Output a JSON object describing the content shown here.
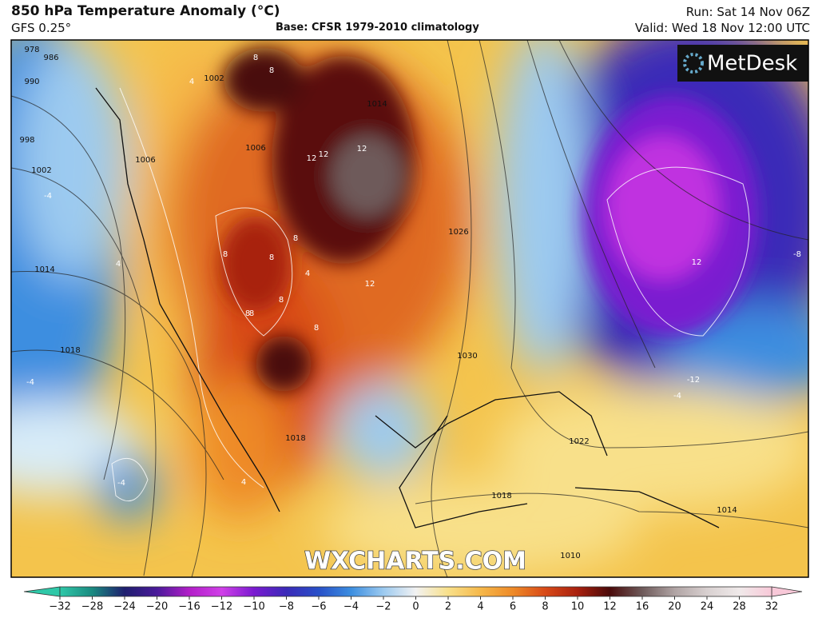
{
  "header": {
    "title": "850 hPa Temperature Anomaly (°C)",
    "model": "GFS 0.25°",
    "base": "Base: CFSR 1979-2010 climatology",
    "run": "Run: Sat 14 Nov 06Z",
    "valid": "Valid: Wed 18 Nov 12:00 UTC"
  },
  "map": {
    "logo": "MetDesk",
    "watermark": "WXCHARTS.COM",
    "isobar_labels": [
      "978",
      "986",
      "990",
      "998",
      "1002",
      "1002",
      "1006",
      "1006",
      "1014",
      "1018",
      "1014",
      "1018",
      "1022",
      "1026",
      "1030",
      "1018",
      "1014",
      "1010"
    ],
    "anomaly_labels": [
      "8",
      "8",
      "12",
      "12",
      "12",
      "12",
      "12",
      "8",
      "8",
      "8",
      "8",
      "8",
      "8",
      "4",
      "4",
      "4",
      "-4",
      "-4",
      "-4",
      "-4",
      "-8",
      "-12",
      "4",
      "8"
    ]
  },
  "colorbar": {
    "ticks": [
      -32,
      -28,
      -24,
      -20,
      -16,
      -12,
      -10,
      -8,
      -6,
      -4,
      -2,
      0,
      2,
      4,
      6,
      8,
      10,
      12,
      16,
      20,
      24,
      28,
      32
    ],
    "colors": [
      "#2fc8a8",
      "#1a8a80",
      "#1e1e6e",
      "#4a1a9a",
      "#b21ec8",
      "#d040e8",
      "#7a1ad0",
      "#3a2ab8",
      "#2850c8",
      "#3c8ee0",
      "#9ccaf0",
      "#f2f2f2",
      "#f8e08a",
      "#f6b84a",
      "#ee8a28",
      "#d84a18",
      "#a8200e",
      "#4a0a0a",
      "#6e5a5a",
      "#b0a4a4",
      "#d8d0d0",
      "#f0eaea",
      "#f8c8d8"
    ]
  }
}
